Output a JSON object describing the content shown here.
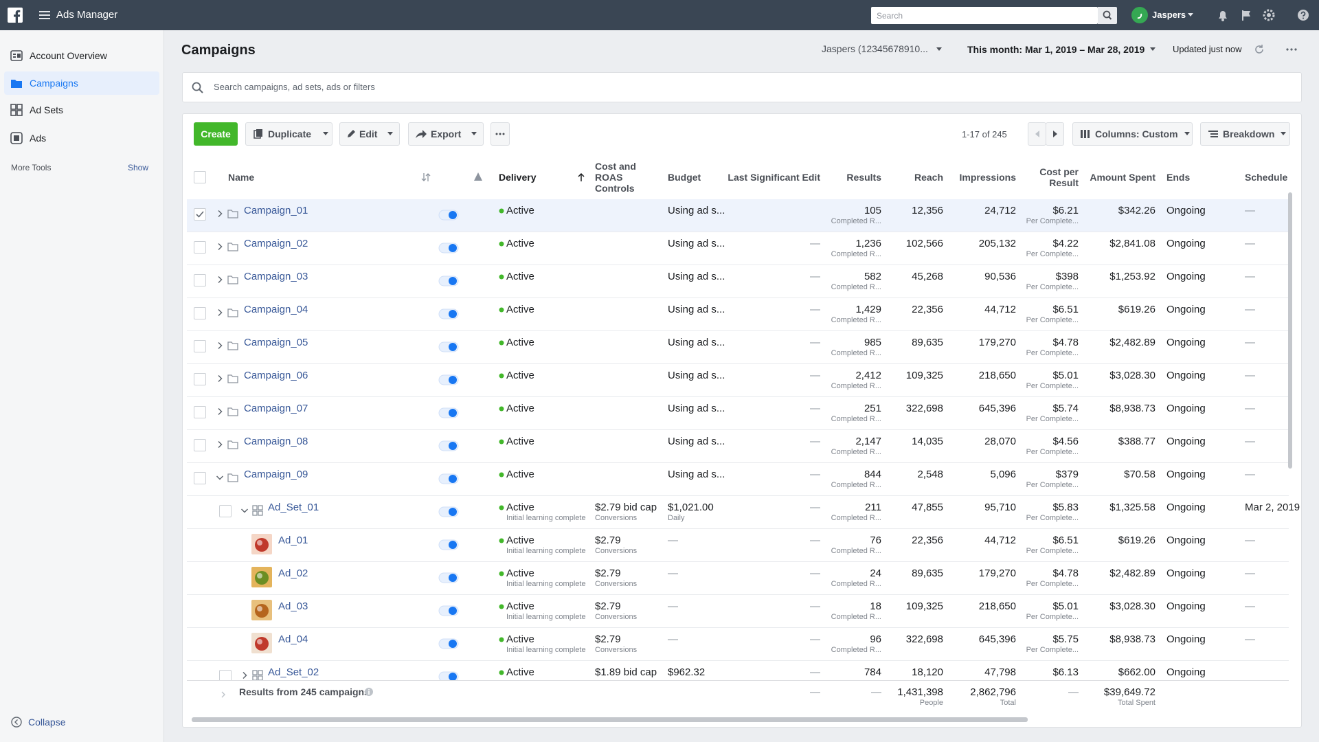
{
  "topbar": {
    "app": "Ads Manager",
    "search": "Search",
    "user": "Jaspers"
  },
  "sidebar": {
    "items": [
      "Account Overview",
      "Campaigns",
      "Ad Sets",
      "Ads"
    ],
    "more_tools": "More Tools",
    "show": "Show",
    "collapse": "Collapse"
  },
  "header": {
    "title": "Campaigns",
    "account": "Jaspers (12345678910...",
    "date_range": "This month: Mar 1, 2019 – Mar 28, 2019",
    "updated": "Updated just now"
  },
  "filter": {
    "placeholder": "Search campaigns, ad sets, ads or filters"
  },
  "toolbar": {
    "create": "Create",
    "duplicate": "Duplicate",
    "edit": "Edit",
    "export": "Export",
    "pagination": "1-17 of 245",
    "columns": "Columns: Custom",
    "breakdown": "Breakdown"
  },
  "table": {
    "columns": {
      "name": "Name",
      "delivery": "Delivery",
      "cost_control": "Cost and ROAS Controls",
      "budget": "Budget",
      "last_edit": "Last Significant Edit",
      "results": "Results",
      "reach": "Reach",
      "impressions": "Impressions",
      "cost_per_result": "Cost per Result",
      "amount_spent": "Amount Spent",
      "ends": "Ends",
      "schedule": "Schedule"
    },
    "campaigns": [
      {
        "name": "Campaign_01",
        "delivery": "Active",
        "budget": "Using ad s...",
        "results": "105",
        "results_note": "Completed R...",
        "reach": "12,356",
        "impressions": "24,712",
        "cost_per_result": "$6.21",
        "cost_note": "Per Complete...",
        "amount_spent": "$342.26",
        "ends": "Ongoing",
        "schedule": "—"
      },
      {
        "name": "Campaign_02",
        "delivery": "Active",
        "budget": "Using ad s...",
        "last_edit": "—",
        "results": "1,236",
        "results_note": "Completed R...",
        "reach": "102,566",
        "impressions": "205,132",
        "cost_per_result": "$4.22",
        "cost_note": "Per Complete...",
        "amount_spent": "$2,841.08",
        "ends": "Ongoing",
        "schedule": "—"
      },
      {
        "name": "Campaign_03",
        "delivery": "Active",
        "budget": "Using ad s...",
        "last_edit": "—",
        "results": "582",
        "results_note": "Completed R...",
        "reach": "45,268",
        "impressions": "90,536",
        "cost_per_result": "$398",
        "cost_note": "Per Complete...",
        "amount_spent": "$1,253.92",
        "ends": "Ongoing",
        "schedule": "—"
      },
      {
        "name": "Campaign_04",
        "delivery": "Active",
        "budget": "Using ad s...",
        "last_edit": "—",
        "results": "1,429",
        "results_note": "Completed R...",
        "reach": "22,356",
        "impressions": "44,712",
        "cost_per_result": "$6.51",
        "cost_note": "Per Complete...",
        "amount_spent": "$619.26",
        "ends": "Ongoing",
        "schedule": "—"
      },
      {
        "name": "Campaign_05",
        "delivery": "Active",
        "budget": "Using ad s...",
        "last_edit": "—",
        "results": "985",
        "results_note": "Completed R...",
        "reach": "89,635",
        "impressions": "179,270",
        "cost_per_result": "$4.78",
        "cost_note": "Per Complete...",
        "amount_spent": "$2,482.89",
        "ends": "Ongoing",
        "schedule": "—"
      },
      {
        "name": "Campaign_06",
        "delivery": "Active",
        "budget": "Using ad s...",
        "last_edit": "—",
        "results": "2,412",
        "results_note": "Completed R...",
        "reach": "109,325",
        "impressions": "218,650",
        "cost_per_result": "$5.01",
        "cost_note": "Per Complete...",
        "amount_spent": "$3,028.30",
        "ends": "Ongoing",
        "schedule": "—"
      },
      {
        "name": "Campaign_07",
        "delivery": "Active",
        "budget": "Using ad s...",
        "last_edit": "—",
        "results": "251",
        "results_note": "Completed R...",
        "reach": "322,698",
        "impressions": "645,396",
        "cost_per_result": "$5.74",
        "cost_note": "Per Complete...",
        "amount_spent": "$8,938.73",
        "ends": "Ongoing",
        "schedule": "—"
      },
      {
        "name": "Campaign_08",
        "delivery": "Active",
        "budget": "Using ad s...",
        "last_edit": "—",
        "results": "2,147",
        "results_note": "Completed R...",
        "reach": "14,035",
        "impressions": "28,070",
        "cost_per_result": "$4.56",
        "cost_note": "Per Complete...",
        "amount_spent": "$388.77",
        "ends": "Ongoing",
        "schedule": "—"
      },
      {
        "name": "Campaign_09",
        "delivery": "Active",
        "budget": "Using ad s...",
        "last_edit": "—",
        "results": "844",
        "results_note": "Completed R...",
        "reach": "2,548",
        "impressions": "5,096",
        "cost_per_result": "$379",
        "cost_note": "Per Complete...",
        "amount_spent": "$70.58",
        "ends": "Ongoing",
        "schedule": "—",
        "ad_sets": [
          {
            "name": "Ad_Set_01",
            "delivery": "Active",
            "delivery_note": "Initial learning complete",
            "cost_control": "$2.79 bid cap",
            "cost_control_note": "Conversions",
            "budget": "$1,021.00",
            "budget_note": "Daily",
            "last_edit": "—",
            "results": "211",
            "results_note": "Completed R...",
            "reach": "47,855",
            "impressions": "95,710",
            "cost_per_result": "$5.83",
            "cost_note": "Per Complete...",
            "amount_spent": "$1,325.58",
            "ends": "Ongoing",
            "schedule": "Mar 2, 2019",
            "ads": [
              {
                "name": "Ad_01",
                "delivery": "Active",
                "delivery_note": "Initial learning complete",
                "cost_control": "$2.79",
                "cost_control_note": "Conversions",
                "budget": "—",
                "last_edit": "—",
                "results": "76",
                "results_note": "Completed R...",
                "reach": "22,356",
                "impressions": "44,712",
                "cost_per_result": "$6.51",
                "cost_note": "Per Complete...",
                "amount_spent": "$619.26",
                "ends": "Ongoing",
                "schedule": "—"
              },
              {
                "name": "Ad_02",
                "delivery": "Active",
                "delivery_note": "Initial learning complete",
                "cost_control": "$2.79",
                "cost_control_note": "Conversions",
                "budget": "—",
                "last_edit": "—",
                "results": "24",
                "results_note": "Completed R...",
                "reach": "89,635",
                "impressions": "179,270",
                "cost_per_result": "$4.78",
                "cost_note": "Per Complete...",
                "amount_spent": "$2,482.89",
                "ends": "Ongoing",
                "schedule": "—"
              },
              {
                "name": "Ad_03",
                "delivery": "Active",
                "delivery_note": "Initial learning complete",
                "cost_control": "$2.79",
                "cost_control_note": "Conversions",
                "budget": "—",
                "last_edit": "—",
                "results": "18",
                "results_note": "Completed R...",
                "reach": "109,325",
                "impressions": "218,650",
                "cost_per_result": "$5.01",
                "cost_note": "Per Complete...",
                "amount_spent": "$3,028.30",
                "ends": "Ongoing",
                "schedule": "—"
              },
              {
                "name": "Ad_04",
                "delivery": "Active",
                "delivery_note": "Initial learning complete",
                "cost_control": "$2.79",
                "cost_control_note": "Conversions",
                "budget": "—",
                "last_edit": "—",
                "results": "96",
                "results_note": "Completed R...",
                "reach": "322,698",
                "impressions": "645,396",
                "cost_per_result": "$5.75",
                "cost_note": "Per Complete...",
                "amount_spent": "$8,938.73",
                "ends": "Ongoing",
                "schedule": "—"
              }
            ]
          },
          {
            "name": "Ad_Set_02",
            "delivery": "Active",
            "cost_control": "$1.89 bid cap",
            "budget": "$962.32",
            "last_edit": "—",
            "results": "784",
            "reach": "18,120",
            "impressions": "47,798",
            "cost_per_result": "$6.13",
            "amount_spent": "$662.00",
            "ends": "Ongoing"
          }
        ]
      }
    ],
    "footer": {
      "label": "Results from 245 campaigns",
      "last_edit": "—",
      "results": "—",
      "reach": "1,431,398",
      "reach_note": "People",
      "impressions": "2,862,796",
      "impressions_note": "Total",
      "cost_per_result": "—",
      "amount_spent": "$39,649.72",
      "amount_note": "Total Spent"
    }
  }
}
